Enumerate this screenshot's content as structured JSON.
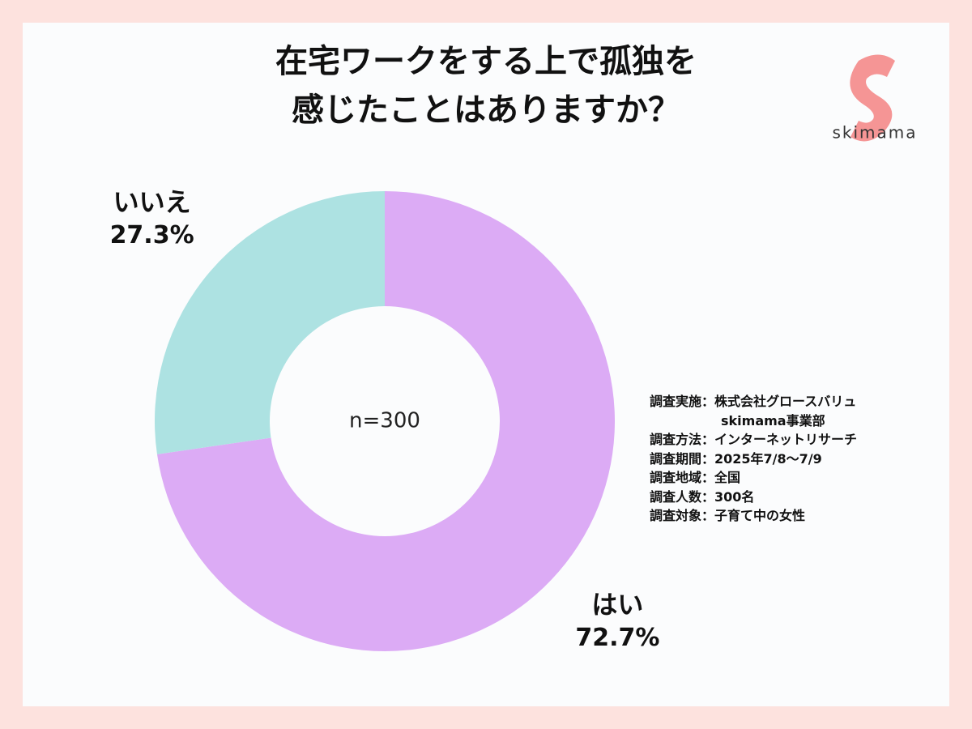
{
  "chart_data": {
    "type": "donut",
    "title": [
      "在宅ワークをする上で孤独を",
      "感じたことはありますか？"
    ],
    "categories": [
      "はい",
      "いいえ"
    ],
    "values": [
      72.7,
      27.3
    ],
    "value_labels": [
      "72.7%",
      "27.3%"
    ],
    "colors": [
      "#dcabf5",
      "#ade2e2"
    ],
    "center_label": "n=300",
    "notes": [
      "調査実施：株式会社グロースバリュ",
      "skimama事業部",
      "調査方法：インターネットリサーチ",
      "調査期間：2025年7/8〜7/9",
      "調査地域：全国",
      "調査人数：300名",
      "調査対象：子育て中の女性"
    ],
    "logo": "skimama"
  }
}
